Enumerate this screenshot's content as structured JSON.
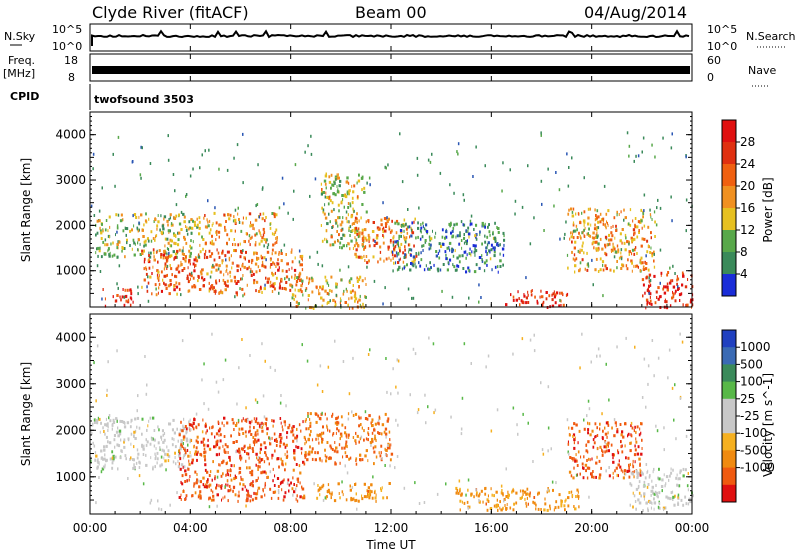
{
  "header": {
    "station": "Clyde River (fitACF)",
    "beam": "Beam 00",
    "date": "04/Aug/2014"
  },
  "top_panels": {
    "nsky_label": "N.Sky",
    "nsky_ticks": [
      "10^5",
      "10^0"
    ],
    "nsearch_label": "N.Search",
    "nsearch_ticks": [
      "10^5",
      "10^0"
    ],
    "freq_label": "Freq.",
    "freq_unit": "[MHz]",
    "freq_ticks": [
      "18",
      "8"
    ],
    "nave_label": "Nave",
    "nave_ticks": [
      "60",
      "0"
    ],
    "cpid_label": "CPID",
    "cpid_value": "twofsound 3503"
  },
  "x_axis": {
    "label": "Time UT",
    "ticks": [
      "00:00",
      "04:00",
      "08:00",
      "12:00",
      "16:00",
      "20:00",
      "00:00"
    ]
  },
  "colors": {
    "power": [
      "#1a2dd8",
      "#2a56b4",
      "#3a8a5a",
      "#58a84a",
      "#e6c020",
      "#f09020",
      "#f06010",
      "#e03010",
      "#e01010"
    ],
    "velocity": [
      "#e01010",
      "#f05a10",
      "#f08a10",
      "#f5b020",
      "#c8c8c8",
      "#c8c8c8",
      "#58b848",
      "#3a8a5a",
      "#3a6ab4",
      "#2040c0"
    ]
  },
  "chart_data": [
    {
      "type": "heatmap",
      "title": "",
      "ylabel": "Slant Range [km]",
      "xlabel": "",
      "xlim": [
        0,
        24
      ],
      "ylim": [
        200,
        4500
      ],
      "yticks": [
        "1000",
        "2000",
        "3000",
        "4000"
      ],
      "colorbar": {
        "label": "Power [dB]",
        "ticks": [
          "4",
          "8",
          "12",
          "16",
          "20",
          "24",
          "28"
        ]
      },
      "regions": [
        {
          "x": [
            0.5,
            1.7
          ],
          "y": [
            250,
            650
          ],
          "value": 28
        },
        {
          "x": [
            0.2,
            4.5
          ],
          "y": [
            1300,
            2300
          ],
          "value": 12
        },
        {
          "x": [
            2.0,
            8.5
          ],
          "y": [
            500,
            1500
          ],
          "value": 22
        },
        {
          "x": [
            4.5,
            7.5
          ],
          "y": [
            1600,
            2300
          ],
          "value": 18
        },
        {
          "x": [
            8.0,
            11.0
          ],
          "y": [
            200,
            900
          ],
          "value": 16
        },
        {
          "x": [
            9.2,
            11.0
          ],
          "y": [
            1500,
            3200
          ],
          "value": 14
        },
        {
          "x": [
            10.5,
            13.0
          ],
          "y": [
            1200,
            2200
          ],
          "value": 20
        },
        {
          "x": [
            12.0,
            16.5
          ],
          "y": [
            1000,
            2100
          ],
          "value": 6
        },
        {
          "x": [
            16.5,
            19.0
          ],
          "y": [
            200,
            600
          ],
          "value": 29
        },
        {
          "x": [
            19.0,
            22.5
          ],
          "y": [
            1000,
            2400
          ],
          "value": 18
        },
        {
          "x": [
            22.0,
            24.0
          ],
          "y": [
            200,
            1000
          ],
          "value": 28
        }
      ]
    },
    {
      "type": "heatmap",
      "title": "",
      "ylabel": "Slant Range [km]",
      "xlabel": "Time UT",
      "xlim": [
        0,
        24
      ],
      "ylim": [
        200,
        4500
      ],
      "yticks": [
        "1000",
        "2000",
        "3000",
        "4000"
      ],
      "colorbar": {
        "label": "Velocity [m s^-1]",
        "ticks": [
          "1000",
          "500",
          "100",
          "25",
          "-25",
          "-100",
          "-500",
          "-1000"
        ]
      },
      "regions": [
        {
          "x": [
            0.0,
            4.0
          ],
          "y": [
            1200,
            2300
          ],
          "value": 0
        },
        {
          "x": [
            3.5,
            8.5
          ],
          "y": [
            500,
            2300
          ],
          "value": -400
        },
        {
          "x": [
            8.5,
            12.0
          ],
          "y": [
            1300,
            2400
          ],
          "value": -300
        },
        {
          "x": [
            9.0,
            12.0
          ],
          "y": [
            500,
            900
          ],
          "value": -150
        },
        {
          "x": [
            14.5,
            19.5
          ],
          "y": [
            300,
            800
          ],
          "value": -150
        },
        {
          "x": [
            19.0,
            22.0
          ],
          "y": [
            1000,
            2200
          ],
          "value": -400
        },
        {
          "x": [
            21.5,
            24.0
          ],
          "y": [
            300,
            1200
          ],
          "value": 0
        }
      ]
    }
  ]
}
